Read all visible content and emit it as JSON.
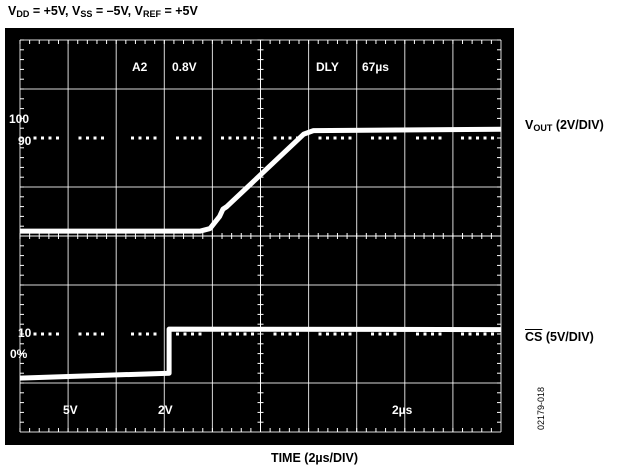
{
  "header": {
    "conditions": [
      {
        "label": "V",
        "sub": "DD",
        "value": " = +5V, "
      },
      {
        "label": "V",
        "sub": "SS",
        "value": " = –5V, "
      },
      {
        "label": "V",
        "sub": "REF",
        "value": " = +5V"
      }
    ]
  },
  "right_labels": {
    "vout": {
      "main": "V",
      "sub": "OUT",
      "rest": " (2V/DIV)"
    },
    "cs": {
      "main": "CS",
      "rest": " (5V/DIV)"
    }
  },
  "xlabel": "TIME (2µs/DIV)",
  "figure_id": "02179-018",
  "colors": {
    "screen": "#000000",
    "trace": "#ffffff",
    "grid": "#ffffff"
  },
  "chart_data": {
    "type": "line",
    "grid": {
      "x_divisions": 10,
      "y_divisions": 8,
      "dotted_rows": [
        2,
        6
      ]
    },
    "x": {
      "unit": "div",
      "range": [
        0,
        10
      ]
    },
    "y": {
      "unit": "div",
      "range": [
        0,
        8
      ]
    },
    "in_screen_text": {
      "a2": "A2",
      "a2_level": "0.8V",
      "dly": "DLY",
      "dly_value": "67µs",
      "ch1_scale": "5V",
      "ch2_scale": "2V",
      "time_scale": "2µs",
      "marker_100": "100",
      "marker_90": "90",
      "marker_10": "10",
      "marker_0": "0%"
    },
    "series": [
      {
        "name": "VOUT",
        "points": [
          [
            0,
            4.1
          ],
          [
            3.75,
            4.1
          ],
          [
            3.95,
            4.15
          ],
          [
            4.15,
            4.4
          ],
          [
            4.22,
            4.55
          ],
          [
            4.3,
            4.6
          ],
          [
            5.9,
            6.08
          ],
          [
            6.1,
            6.15
          ],
          [
            10,
            6.18
          ]
        ]
      },
      {
        "name": "CS",
        "points": [
          [
            0,
            1.1
          ],
          [
            3.1,
            1.2
          ],
          [
            3.1,
            2.1
          ],
          [
            10,
            2.09
          ]
        ]
      }
    ]
  }
}
